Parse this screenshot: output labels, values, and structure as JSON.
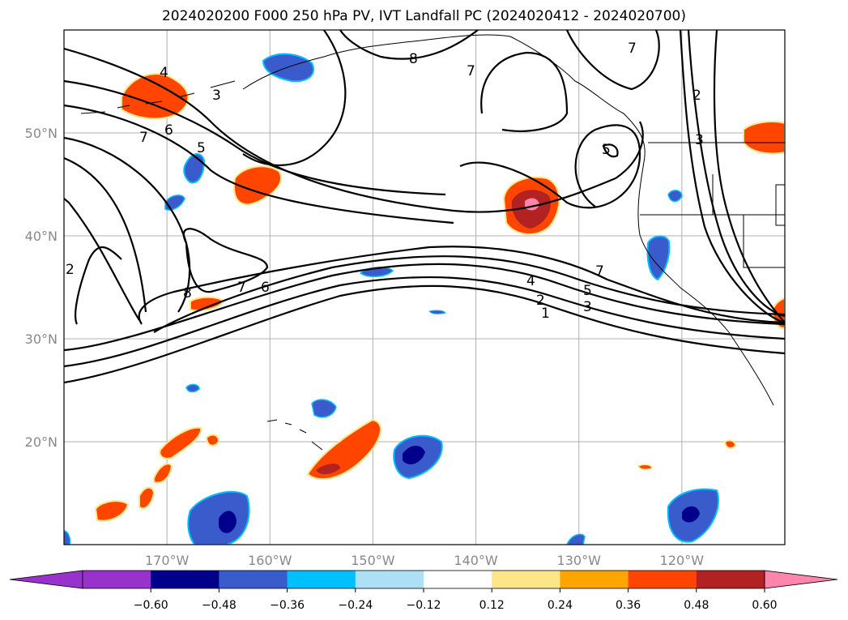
{
  "title": "2024020200 F000 250 hPa PV, IVT Landfall PC (2024020412 - 2024020700)",
  "chart_data": {
    "type": "map-contour",
    "title": "2024020200 F000 250 hPa PV, IVT Landfall PC (2024020412 - 2024020700)",
    "lon_range": [
      -180,
      -110
    ],
    "lat_range": [
      10,
      60
    ],
    "lat_ticks": [
      {
        "value": 20,
        "label": "20°N"
      },
      {
        "value": 30,
        "label": "30°N"
      },
      {
        "value": 40,
        "label": "40°N"
      },
      {
        "value": 50,
        "label": "50°N"
      }
    ],
    "lon_ticks": [
      {
        "value": -170,
        "label": "170°W"
      },
      {
        "value": -160,
        "label": "160°W"
      },
      {
        "value": -150,
        "label": "150°W"
      },
      {
        "value": -140,
        "label": "140°W"
      },
      {
        "value": -130,
        "label": "130°W"
      },
      {
        "value": -120,
        "label": "120°W"
      }
    ],
    "grid": true,
    "pv_contour_labels": [
      "1",
      "2",
      "3",
      "4",
      "5",
      "6",
      "7",
      "8"
    ],
    "colorbar": {
      "orientation": "horizontal",
      "extend": "both",
      "levels": [
        -0.6,
        -0.48,
        -0.36,
        -0.24,
        -0.12,
        0.12,
        0.24,
        0.36,
        0.48,
        0.6
      ],
      "tick_labels": [
        "−0.60",
        "−0.48",
        "−0.36",
        "−0.24",
        "−0.12",
        "0.12",
        "0.24",
        "0.36",
        "0.48",
        "0.60"
      ],
      "colors": [
        "#9932CC",
        "#00008B",
        "#3A5BCC",
        "#00BFFF",
        "#ADDFF7",
        "#FFFFFF",
        "#FDE68A",
        "#FFA500",
        "#FF4500",
        "#B22222",
        "#FF85AD"
      ]
    }
  }
}
